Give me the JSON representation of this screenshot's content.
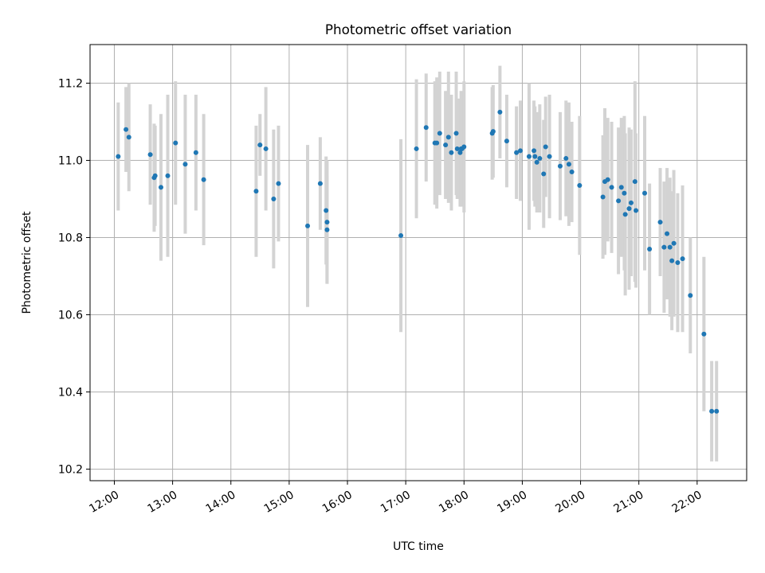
{
  "chart_data": {
    "type": "scatter",
    "title": "Photometric offset variation",
    "xlabel": "UTC time",
    "ylabel": "Photometric offset",
    "grid": true,
    "legend": "none",
    "xlim": [
      "11:35",
      "22:51"
    ],
    "ylim": [
      10.17,
      11.3
    ],
    "x_ticks": [
      "12:00",
      "13:00",
      "14:00",
      "15:00",
      "16:00",
      "17:00",
      "18:00",
      "19:00",
      "20:00",
      "21:00",
      "22:00"
    ],
    "y_ticks": [
      "10.2",
      "10.4",
      "10.6",
      "10.8",
      "11.0",
      "11.2"
    ],
    "colors": {
      "points": "#1f77b4",
      "error_bars": "#d3d3d3"
    },
    "series": [
      {
        "x": [
          "12:04",
          "12:12",
          "12:15",
          "12:37",
          "12:41",
          "12:42",
          "12:48",
          "12:55",
          "13:03",
          "13:13",
          "13:24",
          "13:32",
          "14:26",
          "14:30",
          "14:36",
          "14:44",
          "14:49",
          "15:19",
          "15:32",
          "15:38",
          "15:39",
          "15:39",
          "16:55",
          "17:11",
          "17:21",
          "17:30",
          "17:32",
          "17:35",
          "17:41",
          "17:44",
          "17:47",
          "17:52",
          "17:53",
          "17:56",
          "17:57",
          "17:58",
          "18:00",
          "18:29",
          "18:30",
          "18:37",
          "18:44",
          "18:54",
          "18:58",
          "19:07",
          "19:12",
          "19:13",
          "19:15",
          "19:18",
          "19:22",
          "19:24",
          "19:28",
          "19:39",
          "19:45",
          "19:48",
          "19:51",
          "19:59",
          "20:23",
          "20:25",
          "20:28",
          "20:32",
          "20:39",
          "20:42",
          "20:45",
          "20:46",
          "20:50",
          "20:52",
          "20:56",
          "20:57",
          "21:06",
          "21:11",
          "21:22",
          "21:26",
          "21:29",
          "21:32",
          "21:34",
          "21:36",
          "21:40",
          "21:45",
          "21:53",
          "22:07",
          "22:15",
          "22:20"
        ],
        "y": [
          11.01,
          11.08,
          11.06,
          11.015,
          10.955,
          10.96,
          10.93,
          10.96,
          11.045,
          10.99,
          11.02,
          10.95,
          10.92,
          11.04,
          11.03,
          10.9,
          10.94,
          10.83,
          10.94,
          10.87,
          10.82,
          10.84,
          10.805,
          11.03,
          11.085,
          11.045,
          11.045,
          11.07,
          11.04,
          11.06,
          11.02,
          11.07,
          11.03,
          11.02,
          11.03,
          11.03,
          11.035,
          11.07,
          11.075,
          11.125,
          11.05,
          11.02,
          11.025,
          11.01,
          11.025,
          11.01,
          10.995,
          11.005,
          10.965,
          11.035,
          11.01,
          10.985,
          11.005,
          10.99,
          10.97,
          10.935,
          10.905,
          10.945,
          10.95,
          10.93,
          10.895,
          10.93,
          10.915,
          10.86,
          10.875,
          10.89,
          10.945,
          10.87,
          10.915,
          10.77,
          10.84,
          10.775,
          10.81,
          10.775,
          10.74,
          10.785,
          10.735,
          10.745,
          10.65,
          10.55,
          10.35,
          10.35
        ],
        "yerr": [
          0.14,
          0.11,
          0.14,
          0.13,
          0.14,
          0.13,
          0.19,
          0.21,
          0.16,
          0.18,
          0.15,
          0.17,
          0.17,
          0.08,
          0.16,
          0.18,
          0.15,
          0.21,
          0.12,
          0.14,
          0.14,
          0.16,
          0.25,
          0.18,
          0.14,
          0.16,
          0.17,
          0.16,
          0.14,
          0.17,
          0.15,
          0.16,
          0.13,
          0.14,
          0.15,
          0.14,
          0.17,
          0.12,
          0.12,
          0.12,
          0.12,
          0.12,
          0.13,
          0.19,
          0.13,
          0.13,
          0.13,
          0.14,
          0.14,
          0.13,
          0.16,
          0.14,
          0.15,
          0.16,
          0.13,
          0.18,
          0.16,
          0.19,
          0.16,
          0.17,
          0.19,
          0.18,
          0.2,
          0.21,
          0.21,
          0.19,
          0.26,
          0.2,
          0.2,
          0.17,
          0.14,
          0.17,
          0.17,
          0.18,
          0.18,
          0.19,
          0.18,
          0.19,
          0.15,
          0.2,
          0.13,
          0.13
        ]
      }
    ]
  }
}
